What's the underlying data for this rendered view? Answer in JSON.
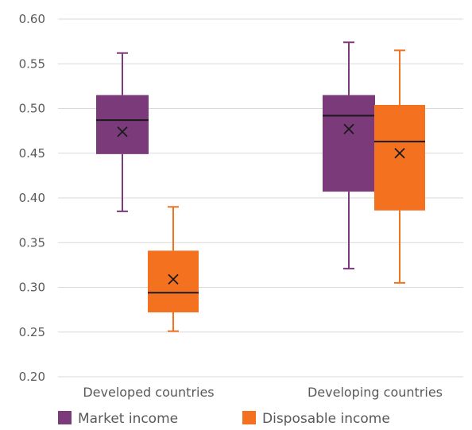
{
  "chart_data": {
    "type": "boxplot",
    "ylim": [
      0.2,
      0.6
    ],
    "yticks": [
      "0.20",
      "0.25",
      "0.30",
      "0.35",
      "0.40",
      "0.45",
      "0.50",
      "0.55",
      "0.60"
    ],
    "categories": [
      "Developed countries",
      "Developing countries"
    ],
    "grid": true,
    "legend_position": "bottom",
    "series": [
      {
        "name": "Market income",
        "color": "#7b3a7a",
        "boxes": [
          {
            "min": 0.385,
            "q1": 0.449,
            "median": 0.487,
            "q3": 0.515,
            "max": 0.562,
            "mean": 0.474
          },
          {
            "min": 0.321,
            "q1": 0.407,
            "median": 0.492,
            "q3": 0.515,
            "max": 0.574,
            "mean": 0.477
          }
        ]
      },
      {
        "name": "Disposable income",
        "color": "#f47120",
        "boxes": [
          {
            "min": 0.251,
            "q1": 0.272,
            "median": 0.294,
            "q3": 0.341,
            "max": 0.39,
            "mean": 0.309
          },
          {
            "min": 0.305,
            "q1": 0.386,
            "median": 0.463,
            "q3": 0.504,
            "max": 0.565,
            "mean": 0.45
          }
        ]
      }
    ]
  }
}
